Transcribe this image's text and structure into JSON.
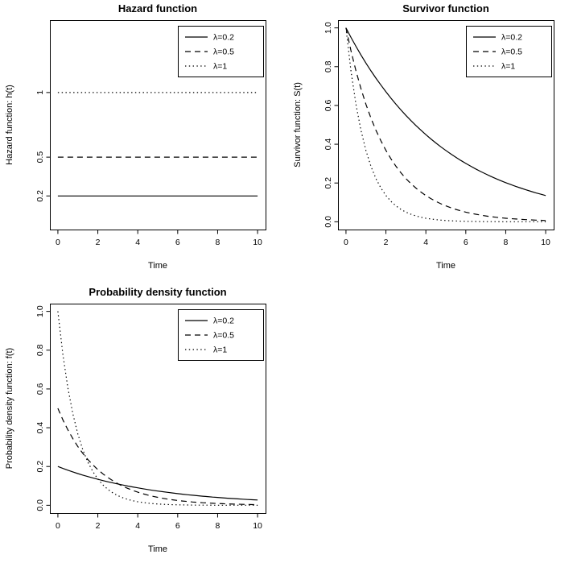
{
  "figure": {
    "background": "#ffffff",
    "line_color": "#000000"
  },
  "chart_data": [
    {
      "id": "hazard",
      "type": "line",
      "title": "Hazard function",
      "xlabel": "Time",
      "ylabel": "Hazard function: h(t)",
      "xlim": [
        -0.4,
        10.4
      ],
      "ylim": [
        -0.06,
        1.56
      ],
      "xticks": [
        0,
        2,
        4,
        6,
        8,
        10
      ],
      "xtick_labels": [
        "0",
        "2",
        "4",
        "6",
        "8",
        "10"
      ],
      "yticks": [
        0.2,
        0.5,
        1
      ],
      "ytick_labels": [
        "0.2",
        "0.5",
        "1"
      ],
      "grid": false,
      "box": true,
      "legend": {
        "position": "top-right",
        "entries": [
          {
            "label": "λ=0.2",
            "lty": "solid"
          },
          {
            "label": "λ=0.5",
            "lty": "dashed"
          },
          {
            "label": "λ=1",
            "lty": "dotted"
          }
        ]
      },
      "x": [
        0,
        10
      ],
      "series": [
        {
          "name": "λ=0.2",
          "lty": "solid",
          "y": [
            0.2,
            0.2
          ]
        },
        {
          "name": "λ=0.5",
          "lty": "dashed",
          "y": [
            0.5,
            0.5
          ]
        },
        {
          "name": "λ=1",
          "lty": "dotted",
          "y": [
            1,
            1
          ]
        }
      ]
    },
    {
      "id": "survivor",
      "type": "line",
      "title": "Survivor function",
      "xlabel": "Time",
      "ylabel": "Survivor function: S(t)",
      "xlim": [
        -0.4,
        10.4
      ],
      "ylim": [
        -0.04,
        1.04
      ],
      "xticks": [
        0,
        2,
        4,
        6,
        8,
        10
      ],
      "xtick_labels": [
        "0",
        "2",
        "4",
        "6",
        "8",
        "10"
      ],
      "yticks": [
        0,
        0.2,
        0.4,
        0.6,
        0.8,
        1
      ],
      "ytick_labels": [
        "0.0",
        "0.2",
        "0.4",
        "0.6",
        "0.8",
        "1.0"
      ],
      "grid": false,
      "box": true,
      "legend": {
        "position": "top-right",
        "entries": [
          {
            "label": "λ=0.2",
            "lty": "solid"
          },
          {
            "label": "λ=0.5",
            "lty": "dashed"
          },
          {
            "label": "λ=1",
            "lty": "dotted"
          }
        ]
      },
      "x": [
        0,
        0.25,
        0.5,
        0.75,
        1,
        1.25,
        1.5,
        1.75,
        2,
        2.25,
        2.5,
        2.75,
        3,
        3.25,
        3.5,
        3.75,
        4,
        4.25,
        4.5,
        4.75,
        5,
        5.25,
        5.5,
        5.75,
        6,
        6.25,
        6.5,
        6.75,
        7,
        7.25,
        7.5,
        7.75,
        8,
        8.25,
        8.5,
        8.75,
        9,
        9.25,
        9.5,
        9.75,
        10
      ],
      "series": [
        {
          "name": "λ=0.2",
          "lty": "solid",
          "y": [
            1,
            0.9512,
            0.9048,
            0.8607,
            0.8187,
            0.7788,
            0.7408,
            0.7047,
            0.6703,
            0.6376,
            0.6065,
            0.5769,
            0.5488,
            0.522,
            0.4966,
            0.4724,
            0.4493,
            0.4274,
            0.4066,
            0.3867,
            0.3679,
            0.3499,
            0.3329,
            0.3166,
            0.3012,
            0.2865,
            0.2725,
            0.2592,
            0.2466,
            0.2346,
            0.2231,
            0.2122,
            0.2019,
            0.192,
            0.1827,
            0.1738,
            0.1653,
            0.1572,
            0.1496,
            0.1423,
            0.1353
          ]
        },
        {
          "name": "λ=0.5",
          "lty": "dashed",
          "y": [
            1,
            0.8825,
            0.7788,
            0.6873,
            0.6065,
            0.5353,
            0.4724,
            0.4169,
            0.3679,
            0.3247,
            0.2865,
            0.2528,
            0.2231,
            0.1969,
            0.1738,
            0.1534,
            0.1353,
            0.1194,
            0.1054,
            0.093,
            0.0821,
            0.0724,
            0.0639,
            0.0564,
            0.0498,
            0.0439,
            0.0388,
            0.0342,
            0.0302,
            0.0266,
            0.0235,
            0.0208,
            0.0183,
            0.0162,
            0.0143,
            0.0126,
            0.0111,
            0.0098,
            0.0087,
            0.0076,
            0.0067
          ]
        },
        {
          "name": "λ=1",
          "lty": "dotted",
          "y": [
            1,
            0.7788,
            0.6065,
            0.4724,
            0.3679,
            0.2865,
            0.2231,
            0.1738,
            0.1353,
            0.1054,
            0.0821,
            0.0639,
            0.0498,
            0.0388,
            0.0302,
            0.0235,
            0.0183,
            0.0143,
            0.0111,
            0.0087,
            0.0067,
            0.0052,
            0.0041,
            0.0032,
            0.0025,
            0.0019,
            0.0015,
            0.0012,
            0.0009,
            0.0007,
            0.0006,
            0.0004,
            0.0003,
            0.0003,
            0.0002,
            0.0002,
            0.0001,
            0.0001,
            0.0001,
            0.0001,
            0
          ]
        }
      ]
    },
    {
      "id": "pdf",
      "type": "line",
      "title": "Probability density function",
      "xlabel": "Time",
      "ylabel": "Probability density function: f(t)",
      "xlim": [
        -0.4,
        10.4
      ],
      "ylim": [
        -0.04,
        1.04
      ],
      "xticks": [
        0,
        2,
        4,
        6,
        8,
        10
      ],
      "xtick_labels": [
        "0",
        "2",
        "4",
        "6",
        "8",
        "10"
      ],
      "yticks": [
        0,
        0.2,
        0.4,
        0.6,
        0.8,
        1
      ],
      "ytick_labels": [
        "0.0",
        "0.2",
        "0.4",
        "0.6",
        "0.8",
        "1.0"
      ],
      "grid": false,
      "box": true,
      "legend": {
        "position": "top-right",
        "entries": [
          {
            "label": "λ=0.2",
            "lty": "solid"
          },
          {
            "label": "λ=0.5",
            "lty": "dashed"
          },
          {
            "label": "λ=1",
            "lty": "dotted"
          }
        ]
      },
      "x": [
        0,
        0.25,
        0.5,
        0.75,
        1,
        1.25,
        1.5,
        1.75,
        2,
        2.25,
        2.5,
        2.75,
        3,
        3.25,
        3.5,
        3.75,
        4,
        4.25,
        4.5,
        4.75,
        5,
        5.25,
        5.5,
        5.75,
        6,
        6.25,
        6.5,
        6.75,
        7,
        7.25,
        7.5,
        7.75,
        8,
        8.25,
        8.5,
        8.75,
        9,
        9.25,
        9.5,
        9.75,
        10
      ],
      "series": [
        {
          "name": "λ=0.2",
          "lty": "solid",
          "y": [
            0.2,
            0.1902,
            0.181,
            0.1721,
            0.1637,
            0.1558,
            0.1482,
            0.1409,
            0.1341,
            0.1275,
            0.1213,
            0.1154,
            0.1098,
            0.1044,
            0.0993,
            0.0945,
            0.0899,
            0.0855,
            0.0813,
            0.0773,
            0.0736,
            0.07,
            0.0666,
            0.0633,
            0.0602,
            0.0573,
            0.0545,
            0.0518,
            0.0493,
            0.0469,
            0.0446,
            0.0424,
            0.0404,
            0.0384,
            0.0365,
            0.0348,
            0.0331,
            0.0314,
            0.0299,
            0.0285,
            0.0271
          ]
        },
        {
          "name": "λ=0.5",
          "lty": "dashed",
          "y": [
            0.5,
            0.4412,
            0.3894,
            0.3437,
            0.3033,
            0.2676,
            0.2362,
            0.2085,
            0.1839,
            0.1624,
            0.1433,
            0.1264,
            0.1116,
            0.0985,
            0.0869,
            0.0767,
            0.0677,
            0.0597,
            0.0527,
            0.0465,
            0.041,
            0.0362,
            0.032,
            0.0282,
            0.0249,
            0.022,
            0.0194,
            0.0171,
            0.0151,
            0.0133,
            0.0118,
            0.0104,
            0.0092,
            0.0081,
            0.0071,
            0.0063,
            0.0056,
            0.0049,
            0.0043,
            0.0038,
            0.0034
          ]
        },
        {
          "name": "λ=1",
          "lty": "dotted",
          "y": [
            1,
            0.7788,
            0.6065,
            0.4724,
            0.3679,
            0.2865,
            0.2231,
            0.1738,
            0.1353,
            0.1054,
            0.0821,
            0.0639,
            0.0498,
            0.0388,
            0.0302,
            0.0235,
            0.0183,
            0.0143,
            0.0111,
            0.0087,
            0.0067,
            0.0052,
            0.0041,
            0.0032,
            0.0025,
            0.0019,
            0.0015,
            0.0012,
            0.0009,
            0.0007,
            0.0006,
            0.0004,
            0.0003,
            0.0003,
            0.0002,
            0.0002,
            0.0001,
            0.0001,
            0.0001,
            0.0001,
            0
          ]
        }
      ]
    }
  ]
}
